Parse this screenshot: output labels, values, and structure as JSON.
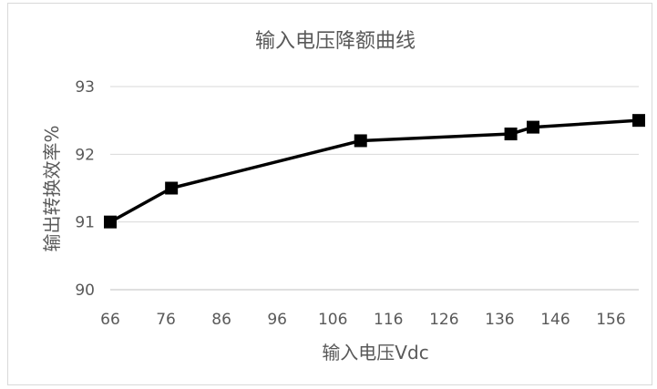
{
  "chart_data": {
    "type": "line",
    "title": "输入电压降额曲线",
    "xlabel": "输入电压Vdc",
    "ylabel": "输出转换效率%",
    "xlim": [
      66,
      161
    ],
    "ylim": [
      90,
      93
    ],
    "xticks": [
      66,
      76,
      86,
      96,
      106,
      116,
      126,
      136,
      146,
      156
    ],
    "yticks": [
      90,
      91,
      92,
      93
    ],
    "grid": true,
    "series": [
      {
        "x": [
          66,
          77,
          111,
          138,
          142,
          161
        ],
        "y": [
          91.0,
          91.5,
          92.2,
          92.3,
          92.4,
          92.5
        ],
        "color": "#000000",
        "marker": "square"
      }
    ]
  }
}
